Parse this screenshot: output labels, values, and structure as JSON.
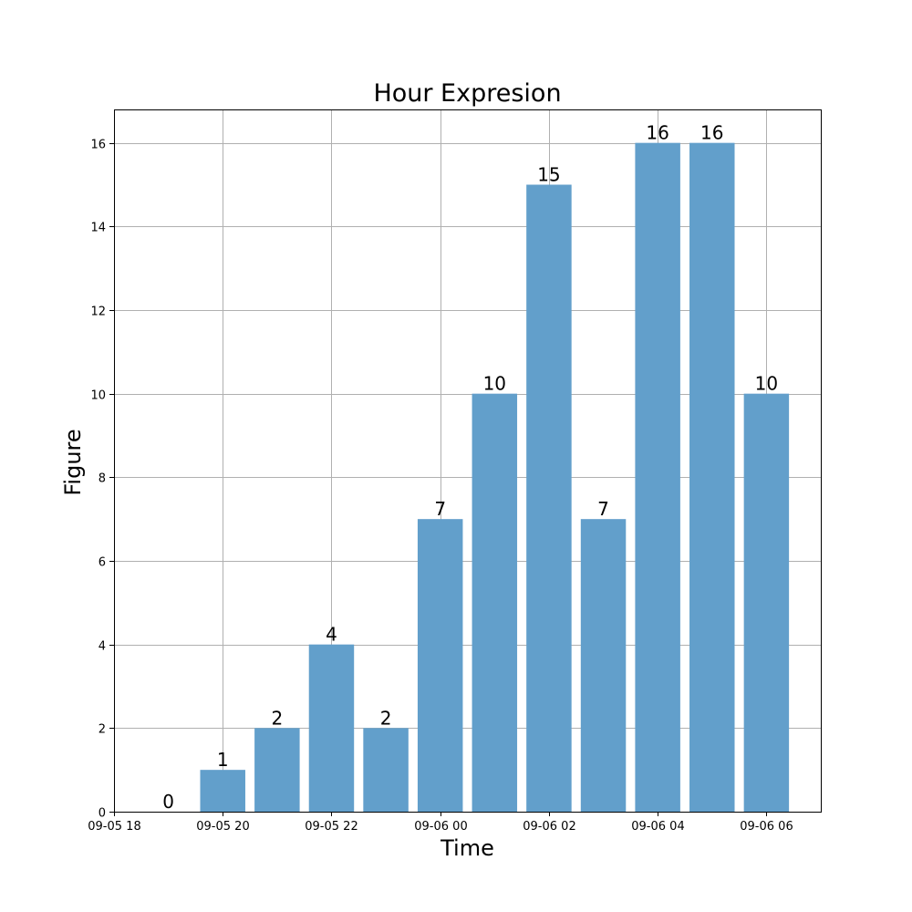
{
  "chart_data": {
    "type": "bar",
    "title": "Hour Expresion",
    "xlabel": "Time",
    "ylabel": "Figure",
    "x": [
      "2024-09-05 19:00",
      "2024-09-05 20:00",
      "2024-09-05 21:00",
      "2024-09-05 22:00",
      "2024-09-05 23:00",
      "2024-09-06 00:00",
      "2024-09-06 01:00",
      "2024-09-06 02:00",
      "2024-09-06 03:00",
      "2024-09-06 04:00",
      "2024-09-06 05:00",
      "2024-09-06 06:00"
    ],
    "values": [
      0,
      1,
      2,
      4,
      2,
      7,
      10,
      15,
      7,
      16,
      16,
      10
    ],
    "data_labels": [
      "0",
      "1",
      "2",
      "4",
      "2",
      "7",
      "10",
      "15",
      "7",
      "16",
      "16",
      "10"
    ],
    "x_ticks": [
      "2024-09-05 18:00",
      "2024-09-05 20:00",
      "2024-09-05 22:00",
      "2024-09-06 00:00",
      "2024-09-06 02:00",
      "2024-09-06 04:00",
      "2024-09-06 06:00"
    ],
    "x_tick_labels": [
      "09-05 18",
      "09-05 20",
      "09-05 22",
      "09-06 00",
      "09-06 02",
      "09-06 04",
      "09-06 06"
    ],
    "xlim": [
      "2024-09-05 18:00",
      "2024-09-06 07:00"
    ],
    "y_ticks": [
      0,
      2,
      4,
      6,
      8,
      10,
      12,
      14,
      16
    ],
    "y_tick_labels": [
      "0",
      "2",
      "4",
      "6",
      "8",
      "10",
      "12",
      "14",
      "16"
    ],
    "ylim": [
      0,
      16.8
    ],
    "grid": true,
    "bar_color": "#629fcb"
  }
}
